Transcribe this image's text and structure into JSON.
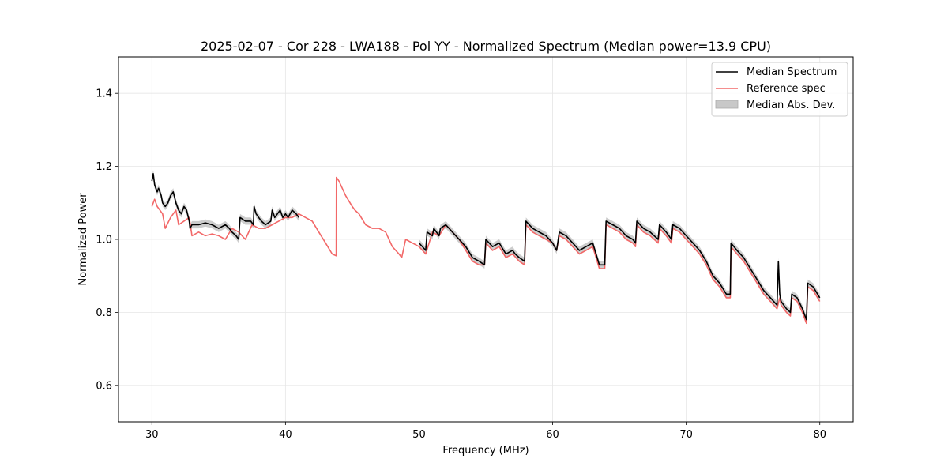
{
  "chart_data": {
    "type": "line",
    "title": "2025-02-07 - Cor 228 - LWA188 - Pol YY - Normalized Spectrum (Median power=13.9 CPU)",
    "xlabel": "Frequency (MHz)",
    "ylabel": "Normalized Power",
    "xlim": [
      27.5,
      82.5
    ],
    "ylim": [
      0.5,
      1.5
    ],
    "xticks": [
      30,
      40,
      50,
      60,
      70,
      80
    ],
    "yticks": [
      0.6,
      0.8,
      1.0,
      1.2,
      1.4
    ],
    "xtick_labels": [
      "30",
      "40",
      "50",
      "60",
      "70",
      "80"
    ],
    "ytick_labels": [
      "0.6",
      "0.8",
      "1.0",
      "1.2",
      "1.4"
    ],
    "grid": true,
    "legend_position": "top-right",
    "legend": [
      "Median Spectrum",
      "Reference spec",
      "Median Abs. Dev."
    ],
    "colors": {
      "median": "#000000",
      "reference": "#f26868",
      "mad": "#c8c8c8"
    },
    "series": [
      {
        "name": "Reference spec",
        "x": [
          30.0,
          30.2,
          30.4,
          30.6,
          30.8,
          31.0,
          31.4,
          31.8,
          32.0,
          32.4,
          32.8,
          33.0,
          33.5,
          34.0,
          34.5,
          35.0,
          35.5,
          36.0,
          36.5,
          37.0,
          37.5,
          38.0,
          38.5,
          39.0,
          39.5,
          40.0,
          40.5,
          41.0,
          41.5,
          42.0,
          42.5,
          43.0,
          43.5,
          43.8,
          43.81,
          44.0,
          44.5,
          45.0,
          45.2,
          45.5,
          46.0,
          46.5,
          47.0,
          47.5,
          48.0,
          48.5,
          48.7,
          49.0,
          49.5,
          50.0,
          50.5,
          51.0,
          51.5,
          52.0,
          52.5,
          53.0,
          53.5,
          54.0,
          54.5,
          54.9,
          55.0,
          55.5,
          56.0,
          56.5,
          57.0,
          57.5,
          57.9,
          58.0,
          58.5,
          59.0,
          59.5,
          60.0,
          60.3,
          60.5,
          61.0,
          61.5,
          62.0,
          62.5,
          63.0,
          63.5,
          63.9,
          64.0,
          64.5,
          65.0,
          65.5,
          66.0,
          66.2,
          66.3,
          66.8,
          67.3,
          67.9,
          68.0,
          68.5,
          68.9,
          69.0,
          69.5,
          70.0,
          70.5,
          71.0,
          71.5,
          72.0,
          72.5,
          73.0,
          73.3,
          73.35,
          73.8,
          74.3,
          74.8,
          75.3,
          75.8,
          76.3,
          76.8,
          77.0,
          77.1,
          77.5,
          77.8,
          77.9,
          78.3,
          78.7,
          79.0,
          79.1,
          79.5,
          80.0
        ],
        "values": [
          1.09,
          1.11,
          1.09,
          1.08,
          1.07,
          1.03,
          1.06,
          1.08,
          1.04,
          1.05,
          1.06,
          1.01,
          1.02,
          1.01,
          1.015,
          1.01,
          1.0,
          1.03,
          1.02,
          1.0,
          1.04,
          1.03,
          1.03,
          1.04,
          1.05,
          1.06,
          1.06,
          1.07,
          1.06,
          1.05,
          1.02,
          0.99,
          0.96,
          0.955,
          1.17,
          1.16,
          1.12,
          1.09,
          1.08,
          1.07,
          1.04,
          1.03,
          1.03,
          1.02,
          0.98,
          0.96,
          0.95,
          1.0,
          0.99,
          0.98,
          0.96,
          1.02,
          1.01,
          1.04,
          1.02,
          1.0,
          0.97,
          0.94,
          0.93,
          0.93,
          0.99,
          0.97,
          0.98,
          0.95,
          0.96,
          0.94,
          0.93,
          1.04,
          1.02,
          1.01,
          1.0,
          0.99,
          0.97,
          1.01,
          1.0,
          0.98,
          0.96,
          0.97,
          0.98,
          0.92,
          0.92,
          1.04,
          1.03,
          1.02,
          1.0,
          0.99,
          0.98,
          1.04,
          1.02,
          1.01,
          0.99,
          1.03,
          1.01,
          0.99,
          1.03,
          1.02,
          1.0,
          0.98,
          0.96,
          0.93,
          0.89,
          0.87,
          0.84,
          0.84,
          0.98,
          0.96,
          0.94,
          0.91,
          0.88,
          0.85,
          0.83,
          0.81,
          0.84,
          0.82,
          0.8,
          0.79,
          0.84,
          0.83,
          0.8,
          0.77,
          0.87,
          0.86,
          0.83
        ]
      },
      {
        "name": "Median Spectrum",
        "segments": [
          {
            "x": [
              30.0,
              30.1,
              30.2,
              30.3,
              30.4,
              30.5,
              30.6,
              30.7,
              30.8,
              31.0,
              31.2,
              31.4,
              31.6,
              31.8,
              32.0,
              32.2,
              32.4,
              32.6,
              32.8,
              32.85,
              33.0,
              33.5,
              34.0,
              34.5,
              35.0,
              35.5,
              35.8,
              36.0,
              36.3,
              36.5,
              36.6,
              37.0,
              37.4,
              37.6,
              37.65,
              37.8,
              38.0,
              38.2,
              38.5,
              38.9,
              39.0,
              39.2,
              39.4,
              39.6,
              39.8,
              40.0,
              40.2,
              40.5,
              40.8,
              41.0
            ],
            "values": [
              1.16,
              1.18,
              1.15,
              1.14,
              1.13,
              1.14,
              1.13,
              1.12,
              1.1,
              1.09,
              1.1,
              1.12,
              1.13,
              1.1,
              1.08,
              1.07,
              1.09,
              1.08,
              1.05,
              1.03,
              1.04,
              1.04,
              1.045,
              1.04,
              1.03,
              1.04,
              1.03,
              1.02,
              1.01,
              1.0,
              1.06,
              1.05,
              1.05,
              1.04,
              1.09,
              1.07,
              1.06,
              1.05,
              1.04,
              1.05,
              1.08,
              1.06,
              1.07,
              1.08,
              1.06,
              1.07,
              1.06,
              1.08,
              1.07,
              1.06
            ]
          },
          {
            "x": [
              50.0,
              50.5,
              50.6,
              51.0,
              51.1,
              51.5,
              51.6,
              52.0,
              52.5,
              53.0,
              53.5,
              54.0,
              54.5,
              54.9,
              55.0,
              55.5,
              56.0,
              56.5,
              57.0,
              57.2,
              57.5,
              57.9,
              58.0,
              58.5,
              59.0,
              59.5,
              60.0,
              60.3,
              60.5,
              61.0,
              61.5,
              62.0,
              62.5,
              63.0,
              63.5,
              63.9,
              64.0,
              64.5,
              65.0,
              65.5,
              66.0,
              66.2,
              66.3,
              66.8,
              67.3,
              67.9,
              68.0,
              68.5,
              68.9,
              69.0,
              69.5,
              70.0,
              70.5,
              71.0,
              71.5,
              72.0,
              72.5,
              73.0,
              73.3,
              73.35,
              73.8,
              74.3,
              74.8,
              75.3,
              75.8,
              76.3,
              76.8,
              76.9,
              77.0,
              77.1,
              77.5,
              77.8,
              77.9,
              78.3,
              78.7,
              79.0,
              79.1,
              79.5,
              80.0
            ],
            "values": [
              0.99,
              0.97,
              1.02,
              1.01,
              1.03,
              1.01,
              1.03,
              1.04,
              1.02,
              1.0,
              0.98,
              0.95,
              0.94,
              0.93,
              1.0,
              0.98,
              0.99,
              0.96,
              0.97,
              0.96,
              0.95,
              0.94,
              1.05,
              1.03,
              1.02,
              1.01,
              0.99,
              0.97,
              1.02,
              1.01,
              0.99,
              0.97,
              0.98,
              0.99,
              0.93,
              0.93,
              1.05,
              1.04,
              1.03,
              1.01,
              1.0,
              0.99,
              1.05,
              1.03,
              1.02,
              1.0,
              1.04,
              1.02,
              1.0,
              1.04,
              1.03,
              1.01,
              0.99,
              0.97,
              0.94,
              0.9,
              0.88,
              0.85,
              0.85,
              0.99,
              0.97,
              0.95,
              0.92,
              0.89,
              0.86,
              0.84,
              0.82,
              0.94,
              0.85,
              0.83,
              0.81,
              0.8,
              0.85,
              0.84,
              0.81,
              0.78,
              0.88,
              0.87,
              0.84
            ]
          }
        ]
      }
    ],
    "mad_width": 0.01
  }
}
